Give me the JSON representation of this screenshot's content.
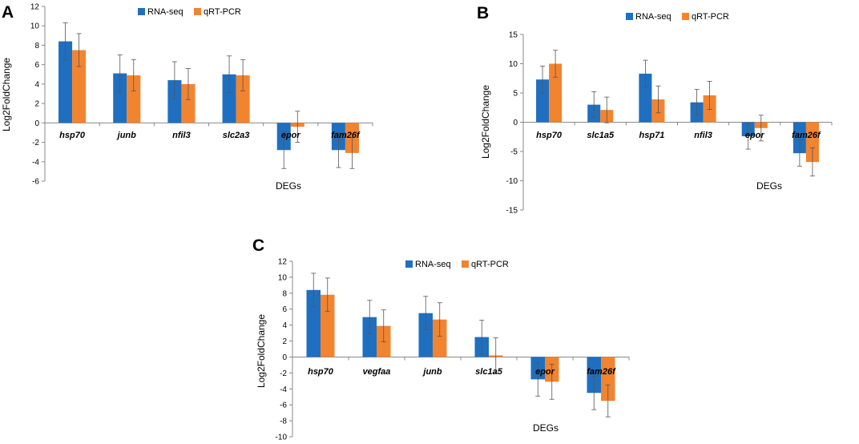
{
  "colors": {
    "rna_seq": "#1F6FC0",
    "qrt_pcr": "#F28430",
    "axis": "#888888",
    "error": "#555555"
  },
  "chart_data": [
    {
      "type": "bar",
      "panel": "A",
      "categories": [
        "hsp70",
        "junb",
        "nfil3",
        "slc2a3",
        "epor",
        "fam26f"
      ],
      "series": [
        {
          "name": "RNA-seq",
          "values": [
            8.4,
            5.1,
            4.4,
            5.0,
            -2.8,
            -2.8
          ],
          "errors": [
            1.9,
            1.9,
            1.9,
            1.9,
            1.9,
            1.8
          ]
        },
        {
          "name": "qRT-PCR",
          "values": [
            7.5,
            4.9,
            4.0,
            4.9,
            -0.4,
            -3.1
          ],
          "errors": [
            1.7,
            1.6,
            1.6,
            1.6,
            1.6,
            1.6
          ]
        }
      ],
      "yticks": [
        "-6",
        "-4",
        "-2",
        "0",
        "2",
        "4",
        "6",
        "8",
        "10",
        "12"
      ],
      "ylim": [
        -6,
        12
      ],
      "xlabel": "DEGs",
      "ylabel": "Log2FoldChange",
      "legend": "top"
    },
    {
      "type": "bar",
      "panel": "B",
      "categories": [
        "hsp70",
        "slc1a5",
        "hsp71",
        "nfil3",
        "epor",
        "fam26f"
      ],
      "series": [
        {
          "name": "RNA-seq",
          "values": [
            7.3,
            3.0,
            8.3,
            3.4,
            -2.4,
            -5.3
          ],
          "errors": [
            2.3,
            2.2,
            2.3,
            2.2,
            2.2,
            2.2
          ]
        },
        {
          "name": "qRT-PCR",
          "values": [
            10.0,
            2.1,
            3.9,
            4.6,
            -1.0,
            -6.8
          ],
          "errors": [
            2.3,
            2.2,
            2.3,
            2.4,
            2.2,
            2.4
          ]
        }
      ],
      "yticks": [
        "-15",
        "-10",
        "-5",
        "0",
        "5",
        "10",
        "15"
      ],
      "ylim": [
        -15,
        15
      ],
      "xlabel": "DEGs",
      "ylabel": "Log2FoldChange",
      "legend": "top"
    },
    {
      "type": "bar",
      "panel": "C",
      "categories": [
        "hsp70",
        "vegfaa",
        "junb",
        "slc1a5",
        "epor",
        "fam26f"
      ],
      "series": [
        {
          "name": "RNA-seq",
          "values": [
            8.4,
            5.0,
            5.5,
            2.5,
            -2.8,
            -4.5
          ],
          "errors": [
            2.1,
            2.1,
            2.1,
            2.1,
            2.1,
            2.1
          ]
        },
        {
          "name": "qRT-PCR",
          "values": [
            7.8,
            3.9,
            4.7,
            0.2,
            -3.1,
            -5.5
          ],
          "errors": [
            2.1,
            2.0,
            2.1,
            2.2,
            2.2,
            2.0
          ]
        }
      ],
      "yticks": [
        "-10",
        "-8",
        "-6",
        "-4",
        "-2",
        "0",
        "2",
        "4",
        "6",
        "8",
        "10",
        "12"
      ],
      "ylim": [
        -10,
        12
      ],
      "xlabel": "DEGs",
      "ylabel": "Log2FoldChange",
      "legend": "top"
    }
  ]
}
